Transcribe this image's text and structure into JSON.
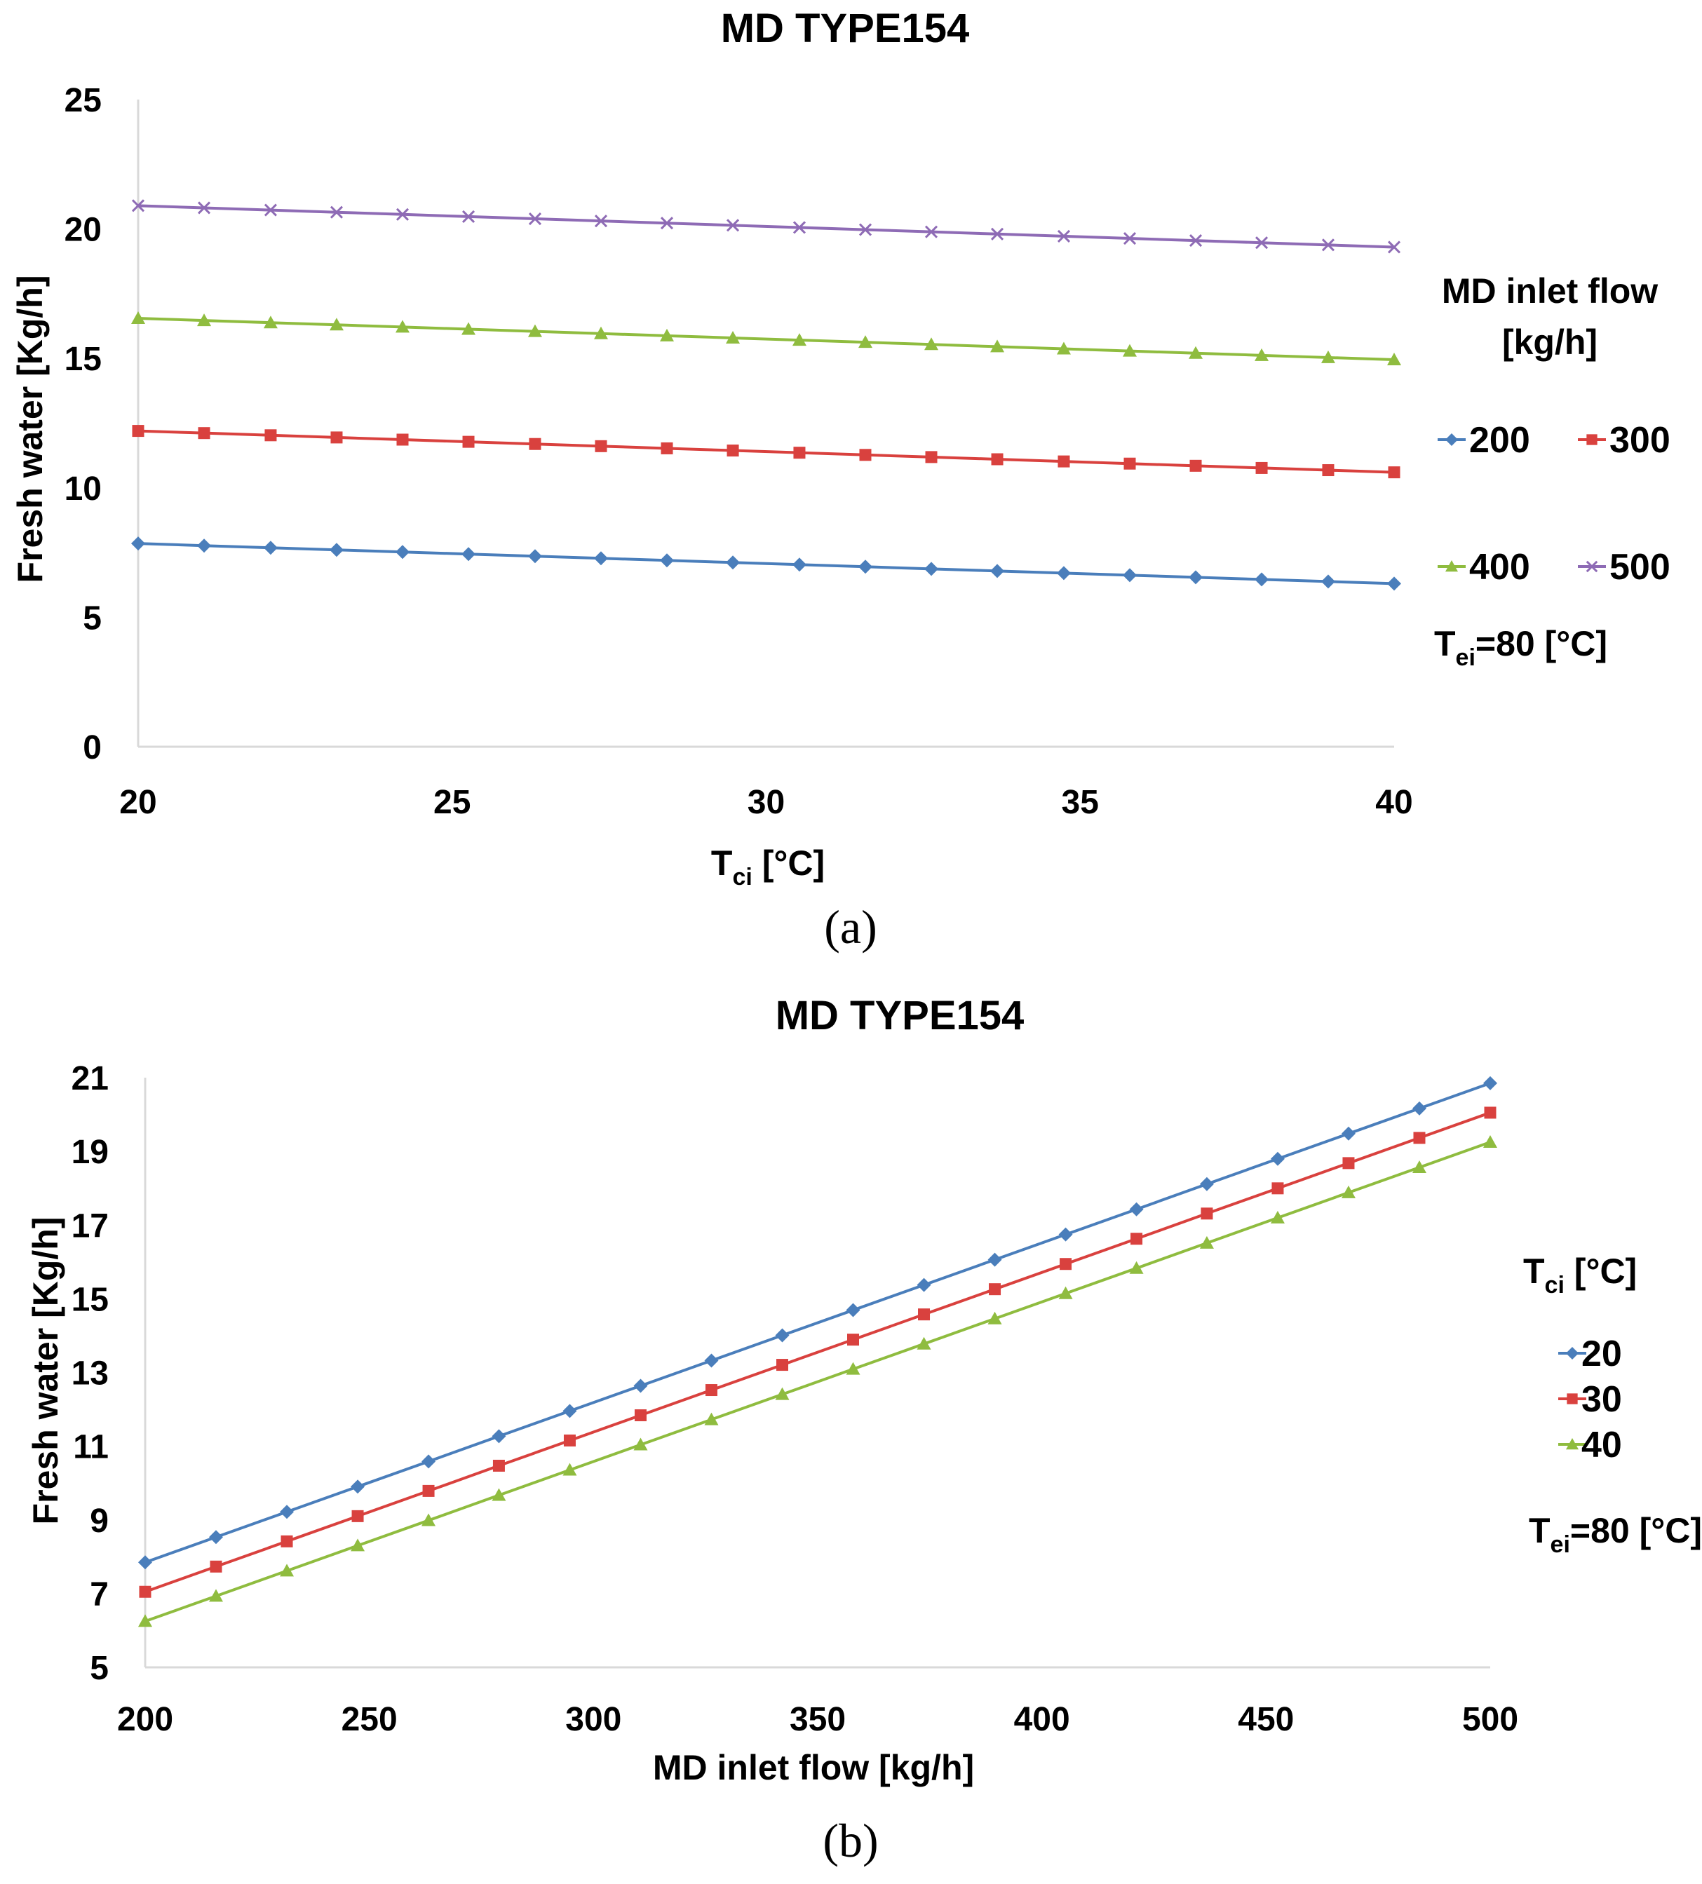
{
  "chart_data": [
    {
      "id": "a",
      "type": "line",
      "title": "MD TYPE154",
      "caption": "(a)",
      "ylabel": "Fresh water [Kg/h]",
      "xlabel_main": "T",
      "xlabel_sub": "ci",
      "xlabel_unit": " [°C]",
      "xlim": [
        20,
        40
      ],
      "ylim": [
        0,
        25
      ],
      "x_ticks": [
        "20",
        "25",
        "30",
        "35",
        "40"
      ],
      "y_ticks": [
        "0",
        "5",
        "10",
        "15",
        "20",
        "25"
      ],
      "x": [
        20,
        21.05,
        22.11,
        23.16,
        24.21,
        25.26,
        26.32,
        27.37,
        28.42,
        29.47,
        30.53,
        31.58,
        32.63,
        33.68,
        34.74,
        35.79,
        36.84,
        37.89,
        38.95,
        40
      ],
      "legend_title_line1": "MD inlet flow",
      "legend_title_line2": "[kg/h]",
      "note_main": "T",
      "note_sub": "ei",
      "note_rest": "=80 [°C]",
      "series": [
        {
          "name": "200",
          "color": "#4a7ebb",
          "marker": "diamond",
          "start": 7.85,
          "end": 6.3
        },
        {
          "name": "300",
          "color": "#d9413e",
          "marker": "square",
          "start": 12.2,
          "end": 10.6
        },
        {
          "name": "400",
          "color": "#8fbc3f",
          "marker": "triangle",
          "start": 16.55,
          "end": 14.95
        },
        {
          "name": "500",
          "color": "#8e6bb5",
          "marker": "x",
          "start": 20.9,
          "end": 19.3
        }
      ]
    },
    {
      "id": "b",
      "type": "line",
      "title": "MD TYPE154",
      "caption": "(b)",
      "ylabel": "Fresh water [Kg/h]",
      "xlabel": "MD inlet flow [kg/h]",
      "xlim": [
        200,
        500
      ],
      "ylim": [
        5,
        21
      ],
      "x_ticks": [
        "200",
        "250",
        "300",
        "350",
        "400",
        "450",
        "500"
      ],
      "y_ticks": [
        "5",
        "7",
        "9",
        "11",
        "13",
        "15",
        "17",
        "19",
        "21"
      ],
      "x": [
        200,
        215.8,
        231.6,
        247.4,
        263.2,
        278.9,
        294.7,
        310.5,
        326.3,
        342.1,
        357.9,
        373.7,
        389.5,
        405.3,
        421.1,
        436.8,
        452.6,
        468.4,
        484.2,
        500
      ],
      "legend_title_main": "T",
      "legend_title_sub": "ci",
      "legend_title_unit": " [°C]",
      "note_main": "T",
      "note_sub": "ei",
      "note_rest": "=80 [°C]",
      "series": [
        {
          "name": "20",
          "color": "#4a7ebb",
          "marker": "diamond",
          "start": 7.85,
          "end": 20.85
        },
        {
          "name": "30",
          "color": "#d9413e",
          "marker": "square",
          "start": 7.05,
          "end": 20.05
        },
        {
          "name": "40",
          "color": "#8fbc3f",
          "marker": "triangle",
          "start": 6.25,
          "end": 19.25
        }
      ]
    }
  ]
}
